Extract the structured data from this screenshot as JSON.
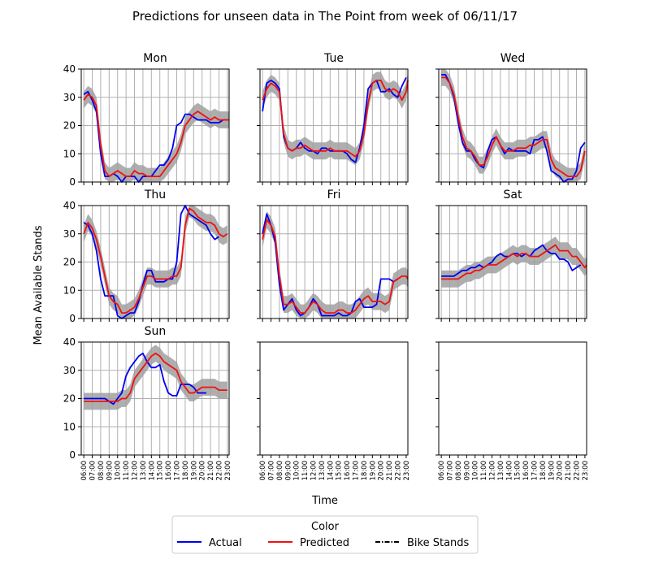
{
  "chart_data": {
    "type": "line",
    "title": "Predictions for unseen data in The Point from week of 06/11/17",
    "xlabel": "Time",
    "ylabel": "Mean Available Stands",
    "ylim": [
      0,
      40
    ],
    "yticks": [
      0,
      10,
      20,
      30,
      40
    ],
    "grid": true,
    "x_tick_labels": [
      "06:00",
      "07:00",
      "08:00",
      "09:00",
      "10:00",
      "11:00",
      "12:00",
      "13:00",
      "14:00",
      "15:00",
      "16:00",
      "17:00",
      "18:00",
      "19:00",
      "20:00",
      "21:00",
      "22:00",
      "23:00"
    ],
    "colors": {
      "actual": "#0000ee",
      "predicted": "#ee1111",
      "band": "#a0a0a0"
    },
    "legend": {
      "title": "Color",
      "placement": "bottom-center",
      "entries": [
        {
          "label": "Actual",
          "style": "solid",
          "color": "#0000ee"
        },
        {
          "label": "Predicted",
          "style": "solid",
          "color": "#ee1111"
        },
        {
          "label": "Bike Stands",
          "style": "dashdot",
          "color": "#000000"
        }
      ]
    },
    "band_halfwidth": 3,
    "panels": [
      {
        "day": "Mon",
        "actual": [
          31,
          32,
          29,
          25,
          10,
          2,
          2,
          3,
          2,
          0,
          2,
          2,
          2,
          0,
          2,
          2,
          2,
          4,
          6,
          6,
          8,
          12,
          20,
          21,
          24,
          24,
          23,
          22,
          22,
          22,
          21,
          21,
          21,
          22,
          22
        ],
        "predicted": [
          29,
          31,
          30,
          27,
          13,
          4,
          2,
          3,
          4,
          3,
          2,
          2,
          4,
          3,
          3,
          2,
          2,
          2,
          2,
          4,
          6,
          8,
          10,
          14,
          20,
          22,
          24,
          25,
          24,
          23,
          22,
          23,
          22,
          22,
          22,
          22
        ]
      },
      {
        "day": "Tue",
        "actual": [
          25,
          35,
          36,
          35,
          33,
          16,
          12,
          11,
          12,
          14,
          12,
          11,
          11,
          10,
          12,
          12,
          11,
          11,
          11,
          11,
          10,
          8,
          7,
          12,
          20,
          33,
          35,
          36,
          32,
          32,
          33,
          31,
          30,
          34,
          37
        ],
        "predicted": [
          29,
          33,
          35,
          34,
          32,
          17,
          12,
          11,
          12,
          12,
          13,
          12,
          11,
          11,
          11,
          11,
          12,
          11,
          11,
          11,
          11,
          10,
          9,
          11,
          17,
          28,
          35,
          36,
          36,
          33,
          32,
          33,
          32,
          29,
          32,
          36
        ]
      },
      {
        "day": "Wed",
        "actual": [
          38,
          38,
          35,
          30,
          21,
          14,
          11,
          11,
          8,
          6,
          5,
          11,
          15,
          16,
          13,
          10,
          12,
          11,
          11,
          11,
          11,
          10,
          15,
          15,
          16,
          11,
          4,
          3,
          2,
          0,
          1,
          1,
          4,
          12,
          14
        ],
        "predicted": [
          37,
          37,
          35,
          31,
          23,
          16,
          12,
          11,
          9,
          6,
          6,
          9,
          13,
          16,
          13,
          11,
          11,
          11,
          12,
          12,
          12,
          13,
          13,
          14,
          15,
          15,
          8,
          5,
          4,
          3,
          2,
          2,
          2,
          4,
          11
        ]
      },
      {
        "day": "Thu",
        "actual": [
          34,
          33,
          30,
          24,
          14,
          8,
          8,
          8,
          1,
          0,
          1,
          2,
          2,
          6,
          12,
          17,
          17,
          13,
          13,
          13,
          14,
          14,
          20,
          37,
          40,
          37,
          36,
          35,
          34,
          33,
          30,
          28,
          29
        ],
        "predicted": [
          30,
          34,
          32,
          28,
          22,
          15,
          8,
          6,
          5,
          2,
          2,
          3,
          4,
          7,
          11,
          15,
          15,
          14,
          14,
          14,
          14,
          15,
          15,
          18,
          33,
          39,
          38,
          36,
          35,
          34,
          34,
          33,
          30,
          29,
          30
        ]
      },
      {
        "day": "Fri",
        "actual": [
          30,
          37,
          33,
          27,
          12,
          3,
          5,
          7,
          3,
          1,
          2,
          4,
          7,
          5,
          1,
          1,
          1,
          1,
          2,
          1,
          1,
          2,
          6,
          7,
          4,
          4,
          4,
          5,
          14,
          14,
          14,
          13,
          14
        ],
        "predicted": [
          28,
          35,
          33,
          29,
          15,
          5,
          5,
          6,
          4,
          2,
          2,
          4,
          6,
          5,
          3,
          2,
          2,
          2,
          3,
          3,
          2,
          2,
          3,
          5,
          7,
          8,
          6,
          6,
          6,
          5,
          6,
          13,
          14,
          15,
          15,
          14
        ]
      },
      {
        "day": "Sat",
        "actual": [
          15,
          15,
          15,
          15,
          16,
          17,
          17,
          18,
          18,
          19,
          18,
          19,
          20,
          22,
          23,
          22,
          22,
          23,
          23,
          22,
          23,
          22,
          24,
          25,
          26,
          24,
          23,
          23,
          21,
          21,
          20,
          17,
          18,
          19
        ],
        "predicted": [
          14,
          14,
          14,
          14,
          14,
          15,
          16,
          16,
          17,
          17,
          18,
          19,
          19,
          19,
          20,
          21,
          22,
          23,
          22,
          23,
          23,
          22,
          22,
          22,
          23,
          24,
          25,
          26,
          24,
          24,
          24,
          22,
          22,
          20,
          18,
          19
        ]
      },
      {
        "day": "Sun",
        "actual": [
          20,
          20,
          20,
          20,
          20,
          20,
          19,
          18,
          20,
          22,
          28,
          31,
          33,
          35,
          36,
          33,
          31,
          31,
          32,
          26,
          22,
          21,
          21,
          25,
          25,
          25,
          24,
          22,
          22,
          22
        ],
        "predicted": [
          19,
          19,
          19,
          19,
          19,
          19,
          19,
          19,
          19,
          20,
          20,
          22,
          27,
          29,
          31,
          33,
          35,
          36,
          35,
          33,
          32,
          31,
          30,
          26,
          24,
          22,
          22,
          23,
          24,
          24,
          24,
          24,
          23,
          23,
          23
        ]
      }
    ]
  }
}
